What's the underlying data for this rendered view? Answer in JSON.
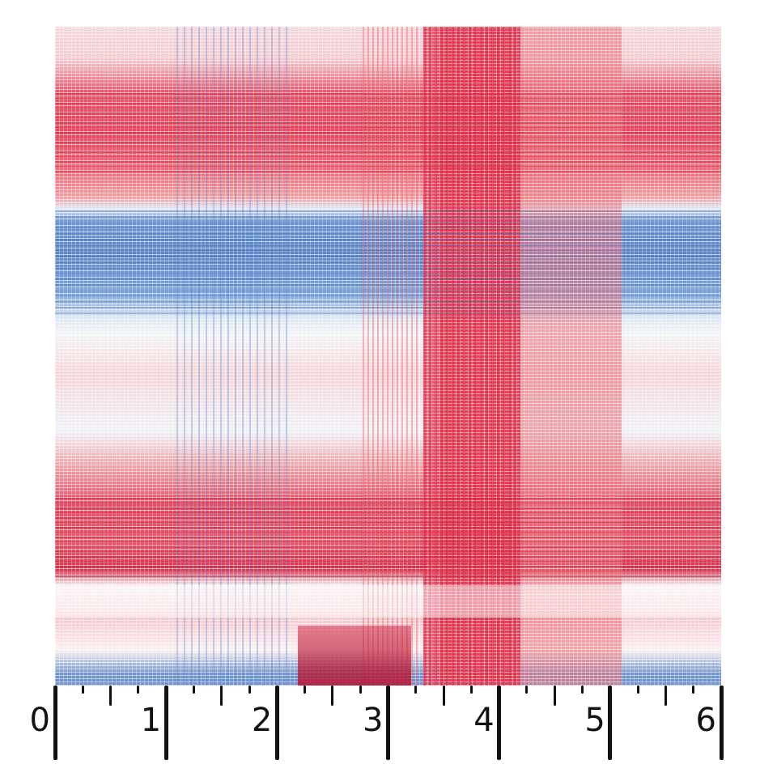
{
  "ruler": {
    "labels": [
      "0",
      "1",
      "2",
      "3",
      "4",
      "5",
      "6"
    ],
    "units": 6,
    "subdivisions": 4
  },
  "swatch": {
    "colors": {
      "red": "#e8485e",
      "pink": "#f39a9f",
      "blue": "#5b86c8",
      "light_blue": "#dbe6f3",
      "white": "#f7f7f9"
    }
  }
}
